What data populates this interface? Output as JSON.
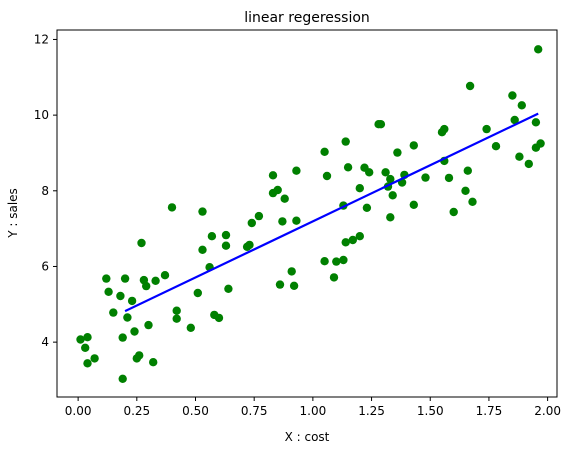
{
  "chart_data": {
    "type": "scatter",
    "title": "linear regeression",
    "xlabel": "X : cost",
    "ylabel": "Y : sales",
    "xlim": [
      -0.09,
      2.04
    ],
    "ylim": [
      2.55,
      12.25
    ],
    "xticks": [
      "0.00",
      "0.25",
      "0.50",
      "0.75",
      "1.00",
      "1.25",
      "1.50",
      "1.75",
      "2.00"
    ],
    "yticks": [
      "4",
      "6",
      "8",
      "10",
      "12"
    ],
    "grid": false,
    "legend": "none",
    "colors": {
      "points": "#008000",
      "fit_line": "#0000ff",
      "axes": "#000000"
    },
    "points": [
      [
        0.01,
        4.07
      ],
      [
        0.03,
        3.85
      ],
      [
        0.04,
        4.13
      ],
      [
        0.04,
        3.44
      ],
      [
        0.07,
        3.57
      ],
      [
        0.12,
        5.68
      ],
      [
        0.13,
        5.33
      ],
      [
        0.15,
        4.78
      ],
      [
        0.18,
        5.22
      ],
      [
        0.19,
        4.12
      ],
      [
        0.19,
        3.03
      ],
      [
        0.2,
        5.68
      ],
      [
        0.21,
        4.65
      ],
      [
        0.23,
        5.09
      ],
      [
        0.24,
        4.28
      ],
      [
        0.25,
        3.57
      ],
      [
        0.26,
        3.65
      ],
      [
        0.27,
        6.62
      ],
      [
        0.28,
        5.64
      ],
      [
        0.29,
        5.48
      ],
      [
        0.3,
        4.45
      ],
      [
        0.32,
        3.47
      ],
      [
        0.33,
        5.62
      ],
      [
        0.37,
        5.77
      ],
      [
        0.4,
        7.56
      ],
      [
        0.42,
        4.62
      ],
      [
        0.42,
        4.83
      ],
      [
        0.48,
        4.38
      ],
      [
        0.51,
        5.3
      ],
      [
        0.53,
        7.45
      ],
      [
        0.53,
        6.44
      ],
      [
        0.56,
        5.98
      ],
      [
        0.57,
        6.8
      ],
      [
        0.58,
        4.72
      ],
      [
        0.6,
        4.64
      ],
      [
        0.63,
        6.55
      ],
      [
        0.63,
        6.83
      ],
      [
        0.64,
        5.41
      ],
      [
        0.72,
        6.52
      ],
      [
        0.73,
        6.57
      ],
      [
        0.74,
        7.15
      ],
      [
        0.77,
        7.33
      ],
      [
        0.83,
        8.41
      ],
      [
        0.83,
        7.94
      ],
      [
        0.85,
        8.02
      ],
      [
        0.86,
        5.52
      ],
      [
        0.87,
        7.19
      ],
      [
        0.88,
        7.79
      ],
      [
        0.91,
        5.87
      ],
      [
        0.92,
        5.49
      ],
      [
        0.93,
        7.21
      ],
      [
        0.93,
        8.53
      ],
      [
        1.05,
        9.03
      ],
      [
        1.05,
        6.14
      ],
      [
        1.06,
        8.39
      ],
      [
        1.09,
        5.71
      ],
      [
        1.1,
        6.13
      ],
      [
        1.13,
        6.17
      ],
      [
        1.13,
        7.61
      ],
      [
        1.14,
        9.3
      ],
      [
        1.14,
        6.64
      ],
      [
        1.15,
        8.62
      ],
      [
        1.17,
        6.7
      ],
      [
        1.2,
        8.07
      ],
      [
        1.2,
        6.8
      ],
      [
        1.22,
        8.61
      ],
      [
        1.23,
        7.55
      ],
      [
        1.24,
        8.49
      ],
      [
        1.28,
        9.76
      ],
      [
        1.29,
        9.76
      ],
      [
        1.31,
        8.49
      ],
      [
        1.32,
        8.11
      ],
      [
        1.33,
        8.31
      ],
      [
        1.33,
        7.3
      ],
      [
        1.34,
        7.88
      ],
      [
        1.36,
        9.01
      ],
      [
        1.38,
        8.22
      ],
      [
        1.39,
        8.42
      ],
      [
        1.43,
        9.2
      ],
      [
        1.43,
        7.63
      ],
      [
        1.48,
        8.35
      ],
      [
        1.55,
        9.55
      ],
      [
        1.56,
        9.63
      ],
      [
        1.56,
        8.79
      ],
      [
        1.58,
        8.34
      ],
      [
        1.6,
        7.44
      ],
      [
        1.65,
        8.0
      ],
      [
        1.66,
        8.53
      ],
      [
        1.67,
        10.77
      ],
      [
        1.68,
        7.71
      ],
      [
        1.74,
        9.63
      ],
      [
        1.78,
        9.18
      ],
      [
        1.85,
        10.52
      ],
      [
        1.86,
        9.87
      ],
      [
        1.88,
        8.9
      ],
      [
        1.89,
        10.26
      ],
      [
        1.92,
        8.71
      ],
      [
        1.95,
        9.81
      ],
      [
        1.95,
        9.14
      ],
      [
        1.96,
        11.74
      ],
      [
        1.97,
        9.25
      ]
    ],
    "fit_line": {
      "x": [
        0.2,
        1.96
      ],
      "y": [
        4.82,
        10.04
      ]
    }
  }
}
